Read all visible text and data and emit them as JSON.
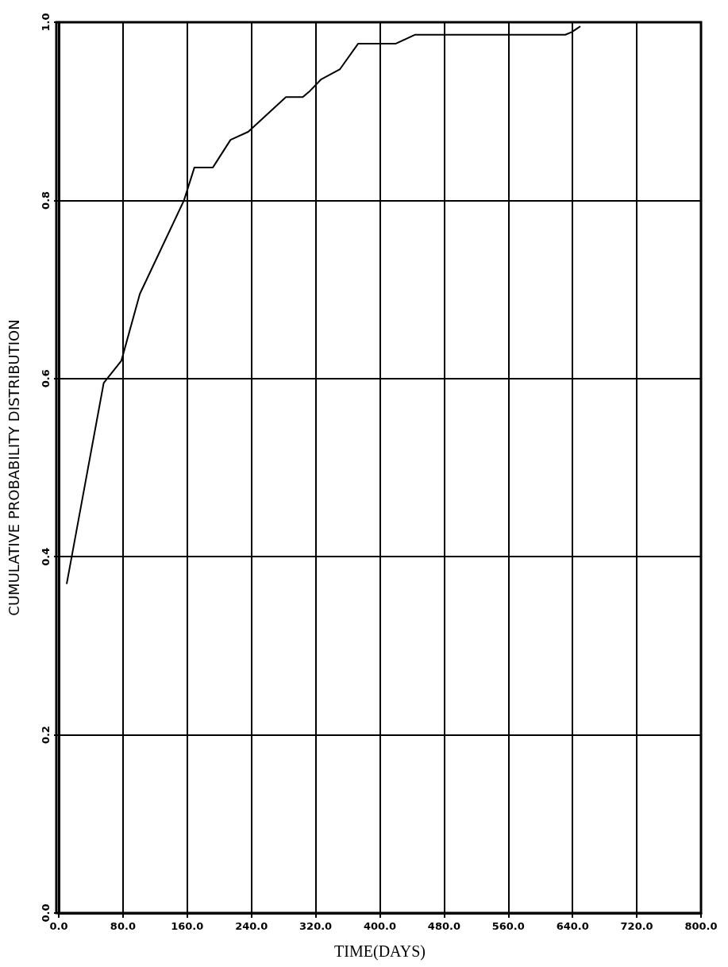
{
  "chart_data": {
    "type": "line",
    "xlabel": "TIME(DAYS)",
    "ylabel": "CUMULATIVE PROBABILITY DISTRIBUTION",
    "series": [
      {
        "color": "#000000",
        "x": [
          10,
          56,
          78,
          101,
          156,
          169,
          192,
          214,
          236,
          283,
          304,
          313,
          327,
          350,
          373,
          420,
          444,
          631,
          639,
          649
        ],
        "values": [
          0.37,
          0.595,
          0.62,
          0.695,
          0.8,
          0.837,
          0.837,
          0.868,
          0.877,
          0.916,
          0.916,
          0.923,
          0.936,
          0.947,
          0.976,
          0.976,
          0.986,
          0.986,
          0.989,
          0.995
        ]
      }
    ],
    "xlim": [
      0,
      800
    ],
    "ylim": [
      0,
      1
    ],
    "xticks": [
      {
        "value": 0,
        "label": "0.0"
      },
      {
        "value": 80,
        "label": "80.0"
      },
      {
        "value": 160,
        "label": "160.0"
      },
      {
        "value": 240,
        "label": "240.0"
      },
      {
        "value": 320,
        "label": "320.0"
      },
      {
        "value": 400,
        "label": "400.0"
      },
      {
        "value": 480,
        "label": "480.0"
      },
      {
        "value": 560,
        "label": "560.0"
      },
      {
        "value": 640,
        "label": "640.0"
      },
      {
        "value": 720,
        "label": "720.0"
      },
      {
        "value": 800,
        "label": "800.0"
      }
    ],
    "yticks": [
      {
        "value": 0,
        "label": "0.0"
      },
      {
        "value": 0.2,
        "label": "0.2"
      },
      {
        "value": 0.4,
        "label": "0.4"
      },
      {
        "value": 0.6,
        "label": "0.6"
      },
      {
        "value": 0.8,
        "label": "0.8"
      },
      {
        "value": 1,
        "label": "1.0"
      }
    ],
    "grid": true,
    "marker": "none",
    "line_style": "solid"
  }
}
